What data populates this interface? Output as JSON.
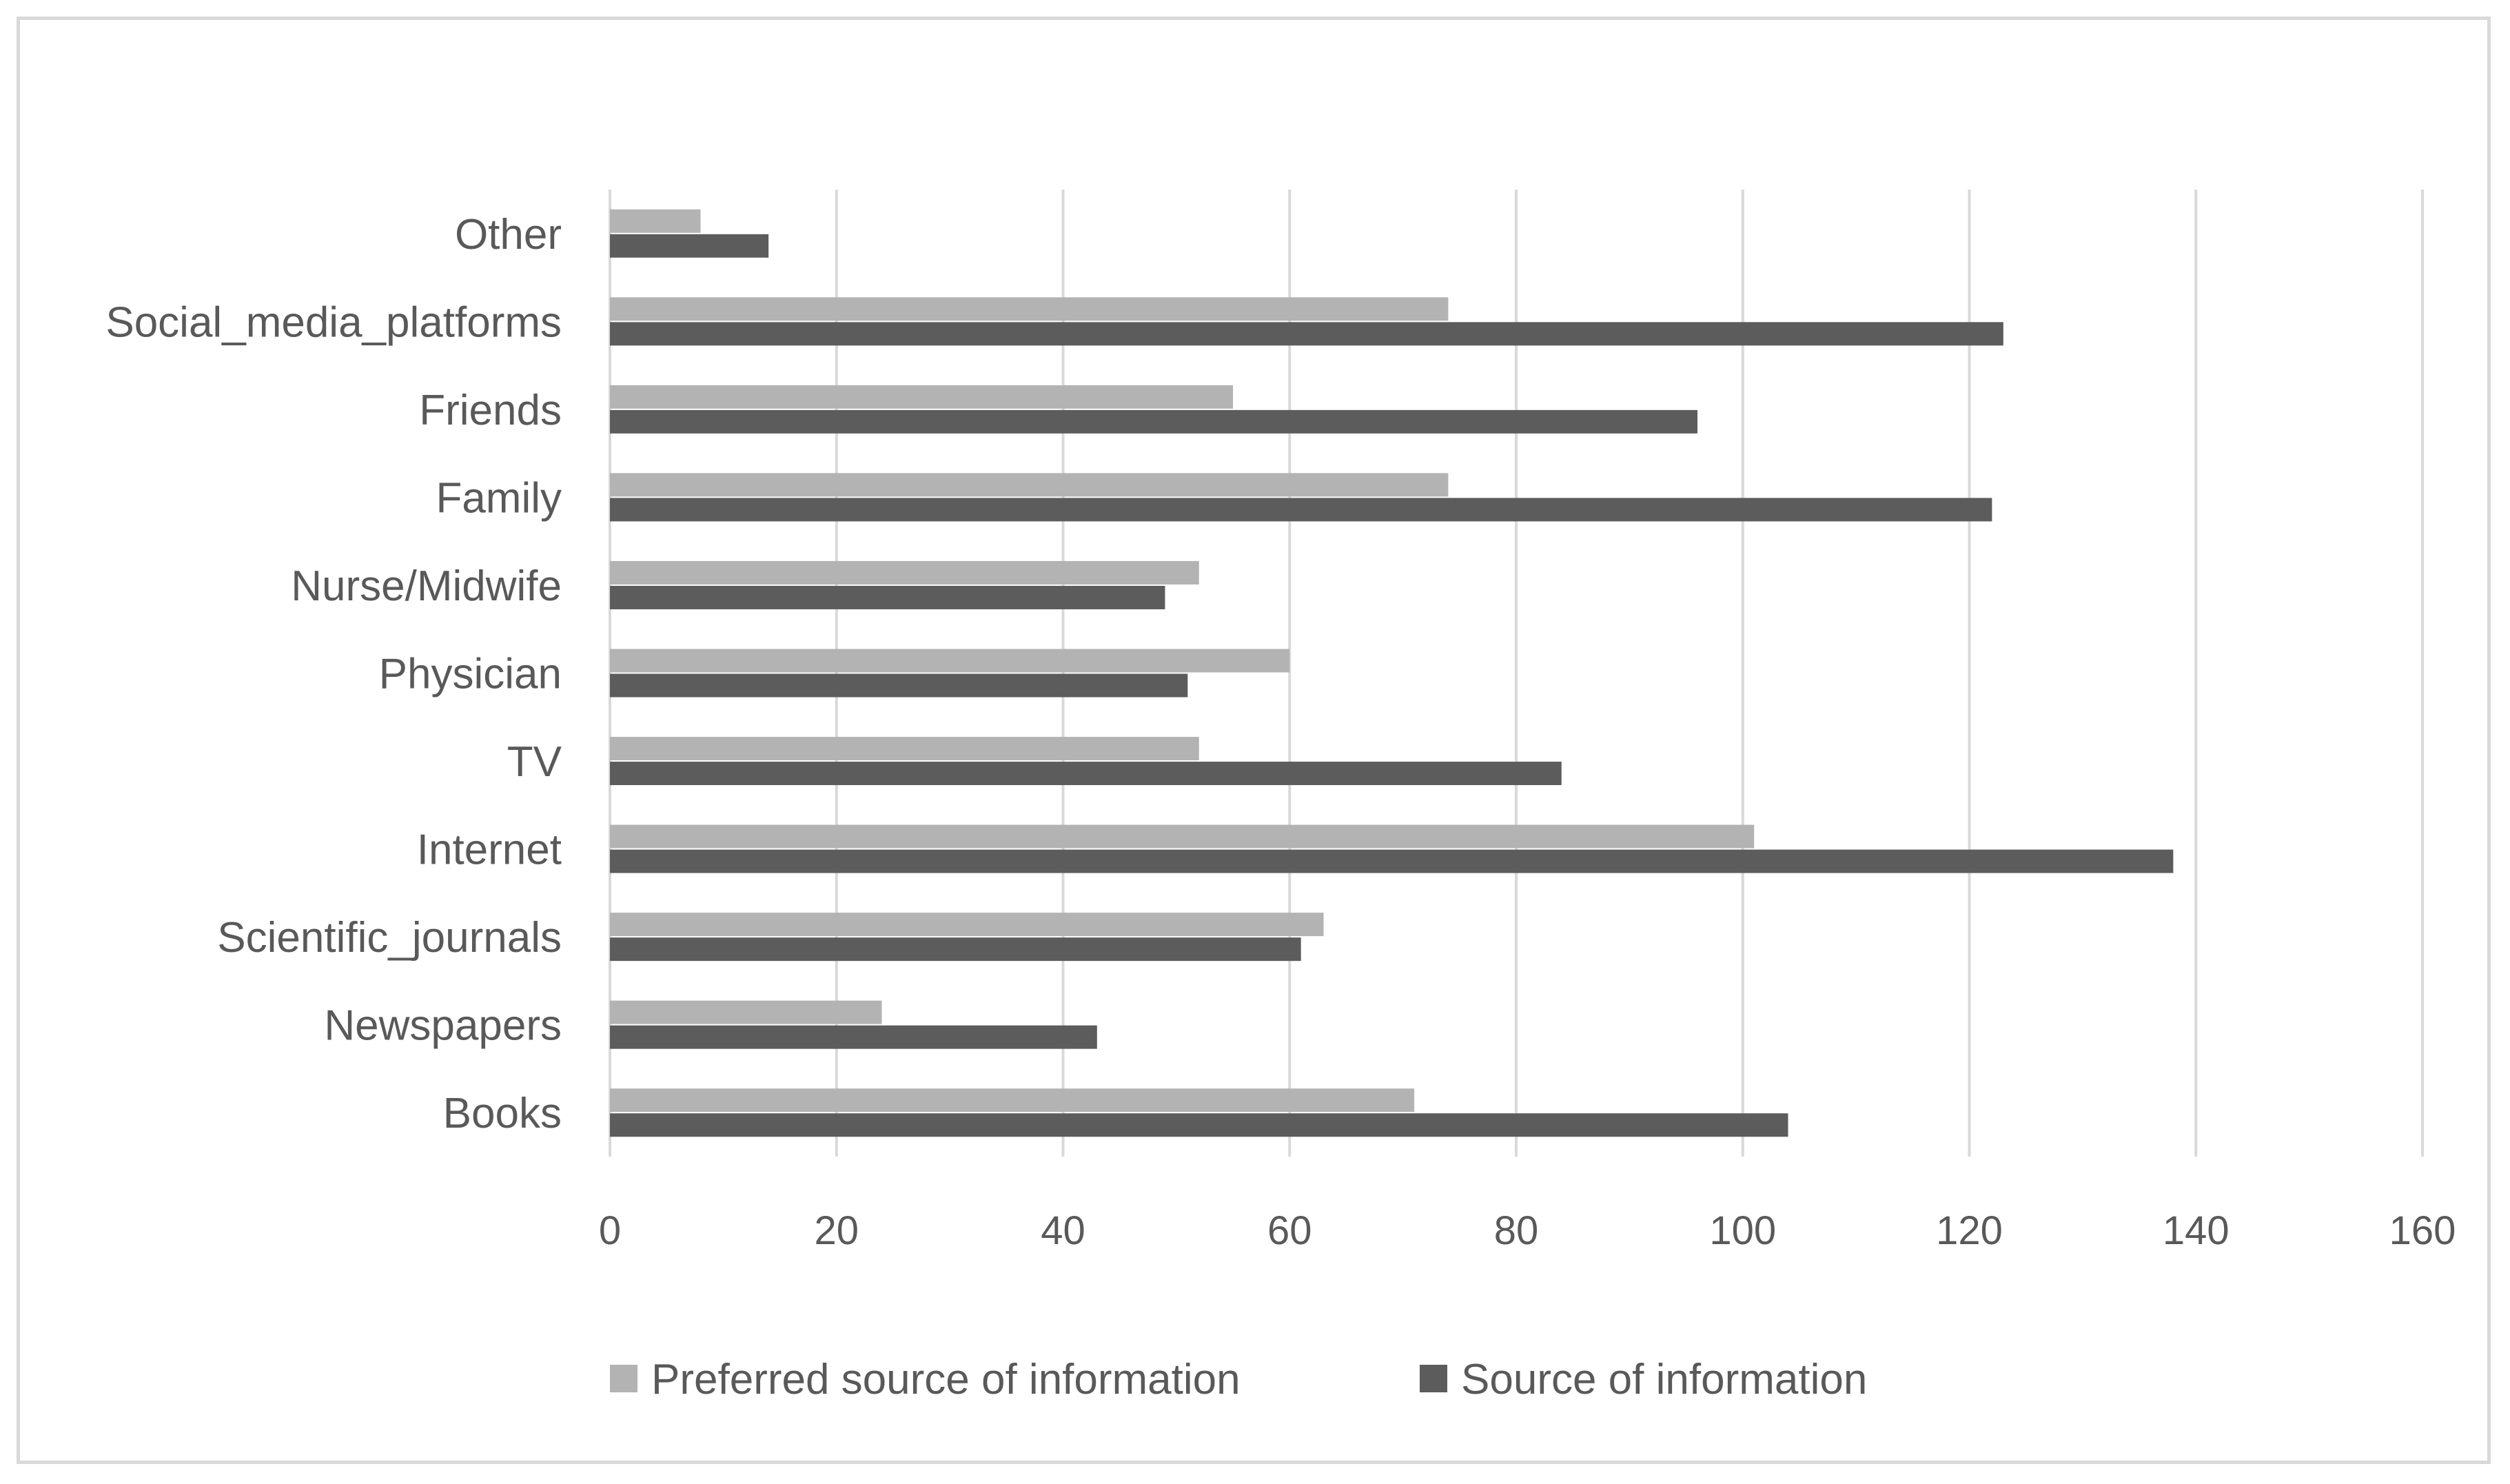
{
  "chart_data": {
    "type": "bar",
    "orientation": "horizontal",
    "categories": [
      "Books",
      "Newspapers",
      "Scientific_journals",
      "Internet",
      "TV",
      "Physician",
      "Nurse/Midwife",
      "Family",
      "Friends",
      "Social_media_platforms",
      "Other"
    ],
    "series": [
      {
        "name": "Preferred source of information",
        "color": "#b3b3b3",
        "values": [
          71,
          24,
          63,
          101,
          52,
          60,
          52,
          74,
          55,
          74,
          8
        ]
      },
      {
        "name": "Source of information",
        "color": "#5c5c5c",
        "values": [
          104,
          43,
          61,
          138,
          84,
          51,
          49,
          122,
          96,
          123,
          14
        ]
      }
    ],
    "xlim": [
      0,
      160
    ],
    "xticks": [
      "0",
      "20",
      "40",
      "60",
      "80",
      "100",
      "120",
      "140",
      "160"
    ],
    "grid": "vertical",
    "legend_position": "bottom",
    "title": "",
    "xlabel": "",
    "ylabel": ""
  }
}
